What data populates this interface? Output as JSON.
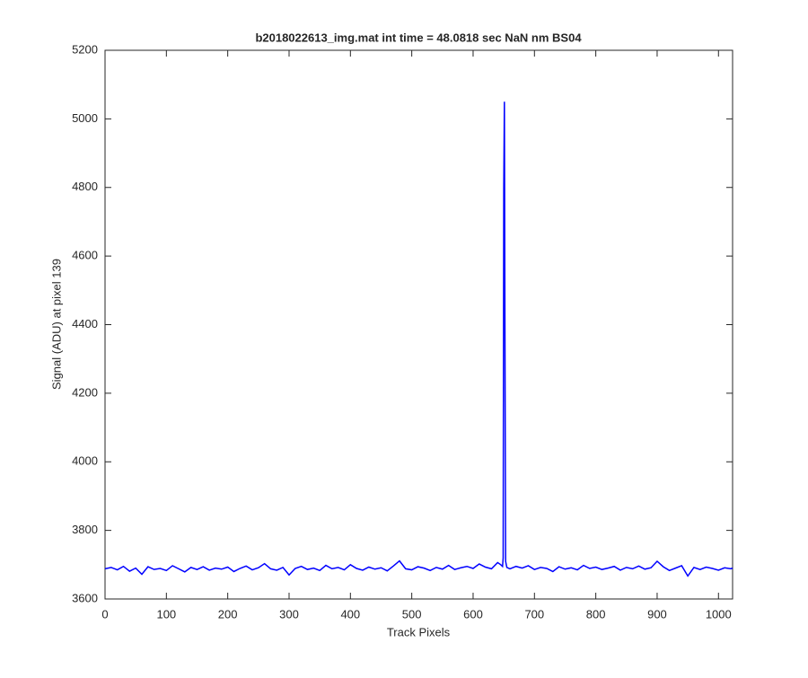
{
  "chart_data": {
    "type": "line",
    "title": "b2018022613_img.mat int time = 48.0818 sec  NaN nm BS04",
    "x_label": "Track Pixels",
    "y_label": "Signal (ADU) at pixel 139",
    "x": [
      0,
      10,
      20,
      30,
      40,
      50,
      60,
      70,
      80,
      90,
      100,
      110,
      120,
      130,
      140,
      150,
      160,
      170,
      180,
      190,
      200,
      210,
      220,
      230,
      240,
      250,
      260,
      270,
      280,
      290,
      300,
      310,
      320,
      330,
      340,
      350,
      360,
      370,
      380,
      390,
      400,
      410,
      420,
      430,
      440,
      450,
      460,
      470,
      480,
      490,
      500,
      510,
      520,
      530,
      540,
      550,
      560,
      570,
      580,
      590,
      600,
      610,
      620,
      630,
      640,
      645,
      648,
      649,
      650,
      651,
      652,
      653,
      655,
      660,
      670,
      680,
      690,
      700,
      710,
      720,
      730,
      740,
      750,
      760,
      770,
      780,
      790,
      800,
      810,
      820,
      830,
      840,
      850,
      860,
      870,
      880,
      890,
      900,
      910,
      920,
      930,
      940,
      950,
      960,
      970,
      980,
      990,
      1000,
      1010,
      1020,
      1023
    ],
    "series": [
      {
        "name": "signal",
        "color": "#0000ff",
        "values": [
          3688,
          3692,
          3685,
          3695,
          3681,
          3690,
          3672,
          3694,
          3686,
          3689,
          3683,
          3697,
          3688,
          3679,
          3692,
          3686,
          3694,
          3684,
          3690,
          3687,
          3693,
          3680,
          3689,
          3696,
          3685,
          3691,
          3703,
          3688,
          3684,
          3692,
          3670,
          3689,
          3695,
          3686,
          3690,
          3683,
          3698,
          3688,
          3692,
          3685,
          3700,
          3689,
          3684,
          3693,
          3687,
          3691,
          3682,
          3696,
          3711,
          3688,
          3685,
          3694,
          3690,
          3683,
          3692,
          3687,
          3698,
          3686,
          3691,
          3695,
          3689,
          3702,
          3693,
          3688,
          3706,
          3700,
          3695,
          3720,
          4800,
          5050,
          4330,
          3710,
          3692,
          3688,
          3695,
          3690,
          3697,
          3686,
          3692,
          3689,
          3680,
          3694,
          3687,
          3691,
          3685,
          3698,
          3689,
          3693,
          3686,
          3690,
          3695,
          3684,
          3692,
          3688,
          3696,
          3687,
          3691,
          3710,
          3694,
          3683,
          3690,
          3697,
          3667,
          3692,
          3686,
          3693,
          3689,
          3684,
          3691,
          3688,
          3690
        ]
      }
    ],
    "xlim": [
      0,
      1023
    ],
    "ylim": [
      3600,
      5200
    ],
    "xticks": [
      0,
      100,
      200,
      300,
      400,
      500,
      600,
      700,
      800,
      900,
      1000
    ],
    "yticks": [
      3600,
      3800,
      4000,
      4200,
      4400,
      4600,
      4800,
      5000,
      5200
    ]
  }
}
